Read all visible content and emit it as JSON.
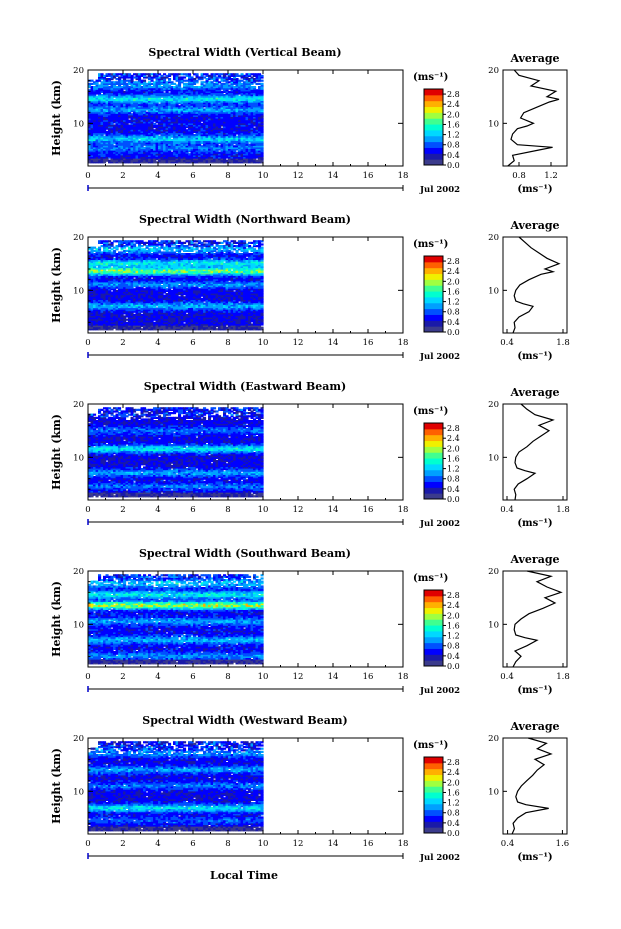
{
  "figure": {
    "x_axis_title": "Local Time",
    "date_label": "Jul 2002",
    "colorbar_unit": "(ms⁻¹)",
    "average_title": "Average",
    "average_unit": "(ms⁻¹)"
  },
  "colors": {
    "colormap": [
      "#3b3b8c",
      "#1a1aa8",
      "#0000ff",
      "#0050ff",
      "#00a0ff",
      "#00d8ff",
      "#00ffd0",
      "#40ff90",
      "#a0ff40",
      "#f0f000",
      "#ffb000",
      "#ff6000",
      "#e00000"
    ],
    "plot_line": "#000000",
    "axis": "#000000",
    "marker": "#0000cc"
  },
  "chart_data": [
    {
      "type": "heatmap",
      "title": "Spectral Width (Vertical Beam)",
      "ylabel": "Height (km)",
      "xlabel": "",
      "xlim": [
        0,
        18
      ],
      "ylim": [
        2,
        20
      ],
      "x_ticks": [
        "0",
        "2",
        "4",
        "6",
        "8",
        "10",
        "12",
        "14",
        "16",
        "18"
      ],
      "y_ticks": [
        "10",
        "20"
      ],
      "data_time_range": [
        0,
        10
      ],
      "colorbar": {
        "unit": "(ms⁻¹)",
        "ticks": [
          "2.8",
          "2.4",
          "2.0",
          "1.6",
          "1.2",
          "0.8",
          "0.4",
          "0.0"
        ],
        "range": [
          0,
          3.0
        ]
      },
      "bands": [
        {
          "height": 5.3,
          "value": 1.0
        },
        {
          "height": 7.0,
          "value": 1.4
        },
        {
          "height": 12.5,
          "value": 1.2
        },
        {
          "height": 14.5,
          "value": 1.6
        },
        {
          "height": 17.0,
          "value": 1.1
        }
      ],
      "base_value": 0.55,
      "average_profile": {
        "xticks": [
          "0.8",
          "1.2"
        ],
        "xlim": [
          0.6,
          1.4
        ],
        "ylim": [
          2,
          20
        ],
        "yticks": [
          "10",
          "20"
        ],
        "heights": [
          2,
          3,
          4,
          5,
          5.5,
          6,
          7,
          8,
          9,
          9.5,
          10,
          11,
          12,
          13,
          14,
          14.5,
          15,
          16,
          17,
          18,
          19,
          20
        ],
        "values": [
          0.66,
          0.74,
          0.72,
          1.05,
          1.22,
          0.78,
          0.7,
          0.72,
          0.78,
          0.9,
          0.98,
          0.82,
          0.86,
          1.02,
          1.18,
          1.3,
          1.15,
          1.26,
          0.95,
          1.05,
          0.8,
          0.74
        ]
      }
    },
    {
      "type": "heatmap",
      "title": "Spectral Width (Northward Beam)",
      "ylabel": "Height (km)",
      "xlabel": "",
      "xlim": [
        0,
        18
      ],
      "ylim": [
        2,
        20
      ],
      "x_ticks": [
        "0",
        "2",
        "4",
        "6",
        "8",
        "10",
        "12",
        "14",
        "16",
        "18"
      ],
      "y_ticks": [
        "10",
        "20"
      ],
      "data_time_range": [
        0,
        10
      ],
      "colorbar": {
        "unit": "(ms⁻¹)",
        "ticks": [
          "2.8",
          "2.4",
          "2.0",
          "1.6",
          "1.2",
          "0.8",
          "0.4",
          "0.0"
        ],
        "range": [
          0,
          3.0
        ]
      },
      "bands": [
        {
          "height": 7.0,
          "value": 1.3
        },
        {
          "height": 11.0,
          "value": 1.1
        },
        {
          "height": 13.5,
          "value": 2.2
        },
        {
          "height": 15.0,
          "value": 1.6
        },
        {
          "height": 17.5,
          "value": 1.2
        }
      ],
      "base_value": 0.5,
      "average_profile": {
        "xticks": [
          "0.4",
          "1.8"
        ],
        "xlim": [
          0.3,
          1.9
        ],
        "ylim": [
          2,
          20
        ],
        "yticks": [
          "10",
          "20"
        ],
        "heights": [
          2,
          3,
          4,
          5,
          6,
          7,
          7.5,
          8,
          9,
          10,
          11,
          12,
          13,
          13.5,
          14,
          15,
          16,
          17,
          18,
          19,
          20
        ],
        "values": [
          0.55,
          0.6,
          0.58,
          0.7,
          0.95,
          1.05,
          0.8,
          0.62,
          0.58,
          0.62,
          0.72,
          0.95,
          1.25,
          1.55,
          1.35,
          1.7,
          1.4,
          1.2,
          1.0,
          0.85,
          0.7
        ]
      }
    },
    {
      "type": "heatmap",
      "title": "Spectral Width (Eastward Beam)",
      "ylabel": "Height (km)",
      "xlabel": "",
      "xlim": [
        0,
        18
      ],
      "ylim": [
        2,
        20
      ],
      "x_ticks": [
        "0",
        "2",
        "4",
        "6",
        "8",
        "10",
        "12",
        "14",
        "16",
        "18"
      ],
      "y_ticks": [
        "10",
        "20"
      ],
      "data_time_range": [
        0,
        10
      ],
      "colorbar": {
        "unit": "(ms⁻¹)",
        "ticks": [
          "2.8",
          "2.4",
          "2.0",
          "1.6",
          "1.2",
          "0.8",
          "0.4",
          "0.0"
        ],
        "range": [
          0,
          3.0
        ]
      },
      "bands": [
        {
          "height": 4.5,
          "value": 1.0
        },
        {
          "height": 7.0,
          "value": 1.2
        },
        {
          "height": 11.5,
          "value": 1.6
        },
        {
          "height": 15.0,
          "value": 1.0
        }
      ],
      "base_value": 0.5,
      "average_profile": {
        "xticks": [
          "0.4",
          "1.8"
        ],
        "xlim": [
          0.3,
          1.9
        ],
        "ylim": [
          2,
          20
        ],
        "yticks": [
          "10",
          "20"
        ],
        "heights": [
          2,
          3,
          4,
          5,
          6,
          7,
          7.5,
          8,
          9,
          10,
          11,
          12,
          13,
          14,
          15,
          16,
          17,
          18,
          19,
          20
        ],
        "values": [
          0.6,
          0.62,
          0.58,
          0.68,
          0.9,
          1.1,
          0.85,
          0.65,
          0.6,
          0.62,
          0.7,
          0.9,
          1.05,
          1.25,
          1.45,
          1.2,
          1.55,
          1.1,
          0.9,
          0.75
        ]
      }
    },
    {
      "type": "heatmap",
      "title": "Spectral Width (Southward Beam)",
      "ylabel": "Height (km)",
      "xlabel": "",
      "xlim": [
        0,
        18
      ],
      "ylim": [
        2,
        20
      ],
      "x_ticks": [
        "0",
        "2",
        "4",
        "6",
        "8",
        "10",
        "12",
        "14",
        "16",
        "18"
      ],
      "y_ticks": [
        "10",
        "20"
      ],
      "data_time_range": [
        0,
        10
      ],
      "colorbar": {
        "unit": "(ms⁻¹)",
        "ticks": [
          "2.8",
          "2.4",
          "2.0",
          "1.6",
          "1.2",
          "0.8",
          "0.4",
          "0.0"
        ],
        "range": [
          0,
          3.0
        ]
      },
      "bands": [
        {
          "height": 4.0,
          "value": 1.1
        },
        {
          "height": 7.0,
          "value": 1.3
        },
        {
          "height": 10.5,
          "value": 1.2
        },
        {
          "height": 13.5,
          "value": 2.4
        },
        {
          "height": 15.5,
          "value": 1.6
        },
        {
          "height": 17.5,
          "value": 1.3
        }
      ],
      "base_value": 0.55,
      "average_profile": {
        "xticks": [
          "0.4",
          "1.8"
        ],
        "xlim": [
          0.3,
          1.9
        ],
        "ylim": [
          2,
          20
        ],
        "yticks": [
          "10",
          "20"
        ],
        "heights": [
          2,
          3,
          4,
          5,
          6,
          7,
          7.5,
          8,
          9,
          10,
          11,
          12,
          13,
          14,
          15,
          16,
          17,
          18,
          19,
          20
        ],
        "values": [
          0.55,
          0.62,
          0.75,
          0.6,
          0.9,
          1.15,
          0.85,
          0.62,
          0.58,
          0.6,
          0.75,
          0.95,
          1.3,
          1.6,
          1.35,
          1.75,
          1.4,
          1.15,
          1.5,
          0.9
        ]
      }
    },
    {
      "type": "heatmap",
      "title": "Spectral Width (Westward Beam)",
      "ylabel": "Height (km)",
      "xlabel": "Local Time",
      "xlim": [
        0,
        18
      ],
      "ylim": [
        2,
        20
      ],
      "x_ticks": [
        "0",
        "2",
        "4",
        "6",
        "8",
        "10",
        "12",
        "14",
        "16",
        "18"
      ],
      "y_ticks": [
        "10",
        "20"
      ],
      "data_time_range": [
        0,
        10
      ],
      "colorbar": {
        "unit": "(ms⁻¹)",
        "ticks": [
          "2.8",
          "2.4",
          "2.0",
          "1.6",
          "1.2",
          "0.8",
          "0.4",
          "0.0"
        ],
        "range": [
          0,
          3.0
        ]
      },
      "bands": [
        {
          "height": 4.5,
          "value": 0.9
        },
        {
          "height": 6.8,
          "value": 1.6
        },
        {
          "height": 11.0,
          "value": 1.0
        },
        {
          "height": 14.0,
          "value": 1.2
        },
        {
          "height": 17.0,
          "value": 1.1
        }
      ],
      "base_value": 0.5,
      "average_profile": {
        "xticks": [
          "0.4",
          "1.6"
        ],
        "xlim": [
          0.3,
          1.7
        ],
        "ylim": [
          2,
          20
        ],
        "yticks": [
          "10",
          "20"
        ],
        "heights": [
          2,
          3,
          4,
          5,
          6,
          6.8,
          7.5,
          8,
          9,
          10,
          11,
          12,
          13,
          14,
          15,
          16,
          17,
          18,
          19,
          20
        ],
        "values": [
          0.5,
          0.55,
          0.52,
          0.62,
          0.8,
          1.3,
          0.8,
          0.62,
          0.58,
          0.62,
          0.7,
          0.82,
          0.95,
          1.05,
          1.2,
          1.0,
          1.35,
          1.05,
          1.25,
          0.85
        ]
      }
    }
  ]
}
